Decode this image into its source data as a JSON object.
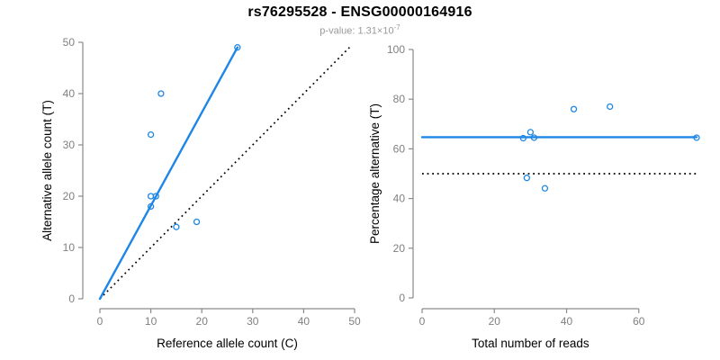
{
  "header": {
    "title": "rs76295528 - ENSG00000164916",
    "subtitle_prefix": "p-value: 1.31×10",
    "subtitle_exponent": "-7"
  },
  "colors": {
    "accent_blue": "#1E86E6",
    "reference_black": "#000000",
    "axis_gray": "#8A8A8A",
    "tick_label_gray": "#808080",
    "axis_title_black": "#000000",
    "subtitle_gray": "#999999"
  },
  "chart_data": [
    {
      "type": "scatter",
      "name": "allele-counts",
      "xlabel": "Reference allele count (C)",
      "ylabel": "Alternative allele count (T)",
      "xlim": [
        0,
        50
      ],
      "ylim": [
        0,
        50
      ],
      "xticks": [
        0,
        10,
        20,
        30,
        40,
        50
      ],
      "yticks": [
        0,
        10,
        20,
        30,
        40,
        50
      ],
      "grid": false,
      "legend": null,
      "points": [
        [
          27,
          49
        ],
        [
          12,
          40
        ],
        [
          10,
          32
        ],
        [
          10,
          20
        ],
        [
          11,
          20
        ],
        [
          10,
          18
        ],
        [
          15,
          14
        ],
        [
          19,
          15
        ]
      ],
      "fit_line": {
        "style": "solid",
        "color_key": "accent_blue",
        "x": [
          0,
          27
        ],
        "y": [
          0,
          49
        ]
      },
      "reference_line": {
        "style": "dotted",
        "color_key": "reference_black",
        "x": [
          0,
          49
        ],
        "y": [
          0,
          49
        ]
      }
    },
    {
      "type": "scatter",
      "name": "percentage-vs-coverage",
      "xlabel": "Total number of reads",
      "ylabel": "Percentage alternative (T)",
      "xlim": [
        0,
        76
      ],
      "ylim": [
        0,
        100
      ],
      "xticks": [
        0,
        20,
        40,
        60
      ],
      "yticks": [
        0,
        20,
        40,
        60,
        80,
        100
      ],
      "grid": false,
      "legend": null,
      "points": [
        [
          76,
          64.5
        ],
        [
          52,
          77
        ],
        [
          42,
          76
        ],
        [
          30,
          66.7
        ],
        [
          31,
          64.5
        ],
        [
          28,
          64.3
        ],
        [
          29,
          48.3
        ],
        [
          34,
          44.1
        ]
      ],
      "fit_line": {
        "style": "solid",
        "color_key": "accent_blue",
        "x": [
          0,
          76
        ],
        "y": [
          64.7,
          64.7
        ]
      },
      "reference_line": {
        "style": "dotted",
        "color_key": "reference_black",
        "x": [
          0,
          76
        ],
        "y": [
          50,
          50
        ]
      }
    }
  ]
}
